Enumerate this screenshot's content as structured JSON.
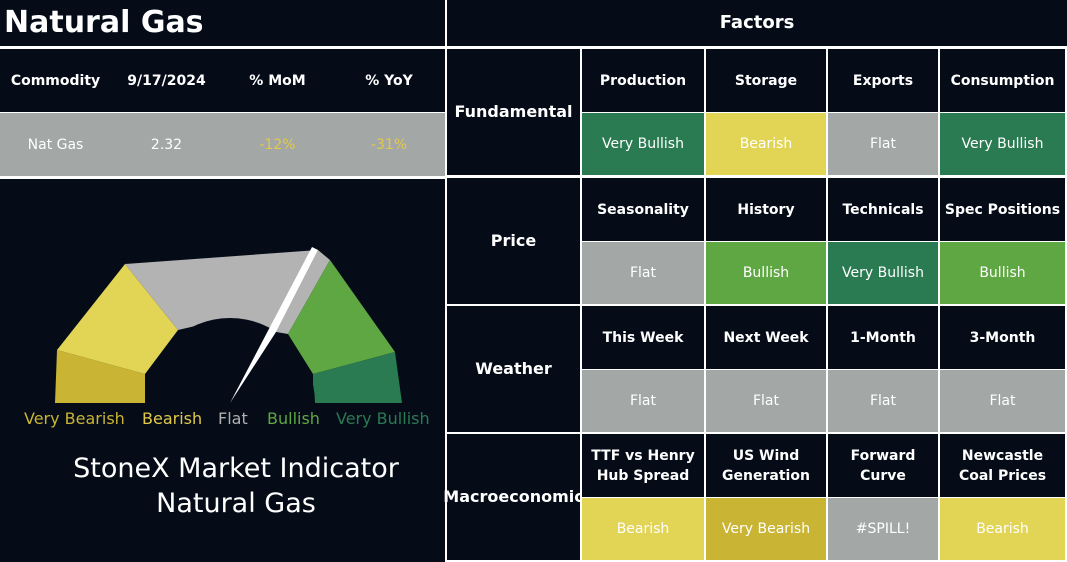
{
  "page_title": "Natural Gas",
  "factors_title": "Factors",
  "summary": {
    "headers": [
      "Commodity",
      "9/17/2024",
      "% MoM",
      "% YoY"
    ],
    "row": [
      "Nat Gas",
      "2.32",
      "-12%",
      "-31%"
    ]
  },
  "gauge": {
    "labels": [
      {
        "text": "Very Bearish",
        "color": "#c9b433"
      },
      {
        "text": "Bearish",
        "color": "#e2c94a"
      },
      {
        "text": "Flat",
        "color": "#b0b0b0"
      },
      {
        "text": "Bullish",
        "color": "#5fa743"
      },
      {
        "text": "Very Bullish",
        "color": "#2a7a52"
      }
    ],
    "caption_line1": "StoneX Market Indicator",
    "caption_line2": "Natural Gas"
  },
  "categories": [
    {
      "name": "Fundamental",
      "factors": [
        {
          "label": "Production",
          "value": "Very Bullish",
          "color": "#2a7a52"
        },
        {
          "label": "Storage",
          "value": "Bearish",
          "color": "#e2d455"
        },
        {
          "label": "Exports",
          "value": "Flat",
          "color": "#a3a7a6"
        },
        {
          "label": "Consumption",
          "value": "Very Bullish",
          "color": "#2a7a52"
        }
      ]
    },
    {
      "name": "Price",
      "factors": [
        {
          "label": "Seasonality",
          "value": "Flat",
          "color": "#a3a7a6"
        },
        {
          "label": "History",
          "value": "Bullish",
          "color": "#5fa743"
        },
        {
          "label": "Technicals",
          "value": "Very Bullish",
          "color": "#2a7a52"
        },
        {
          "label": "Spec Positions",
          "value": "Bullish",
          "color": "#5fa743"
        }
      ]
    },
    {
      "name": "Weather",
      "factors": [
        {
          "label": "This Week",
          "value": "Flat",
          "color": "#a3a7a6"
        },
        {
          "label": "Next Week",
          "value": "Flat",
          "color": "#a3a7a6"
        },
        {
          "label": "1-Month",
          "value": "Flat",
          "color": "#a3a7a6"
        },
        {
          "label": "3-Month",
          "value": "Flat",
          "color": "#a3a7a6"
        }
      ]
    },
    {
      "name": "Macroeconomic",
      "factors": [
        {
          "label": "TTF vs Henry Hub Spread",
          "value": "Bearish",
          "color": "#e2d455"
        },
        {
          "label": "US Wind Generation",
          "value": "Very Bearish",
          "color": "#c9b433"
        },
        {
          "label": "Forward Curve",
          "value": "#SPILL!",
          "color": "#a3a7a6"
        },
        {
          "label": "Newcastle Coal Prices",
          "value": "Bearish",
          "color": "#e2d455"
        }
      ]
    }
  ],
  "colors": {
    "background": "#050c18",
    "grid": "#ffffff",
    "summary_row": "#a3a7a6",
    "negative_text": "#e2c94a"
  }
}
